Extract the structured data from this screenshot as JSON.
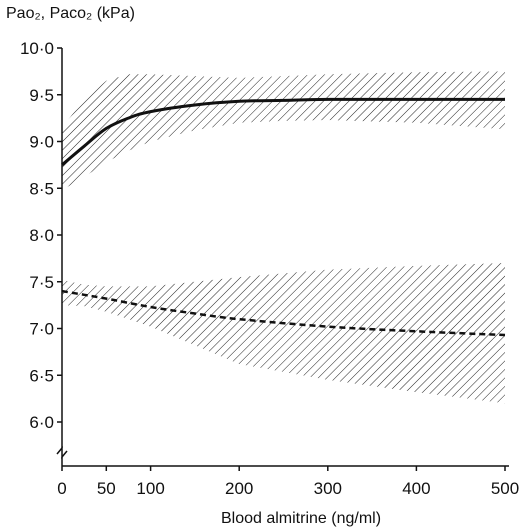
{
  "chart_data": {
    "type": "line",
    "title": "",
    "ylabel": "Pao₂, Paco₂ (kPa)",
    "xlabel": "Blood almitrine (ng/ml)",
    "xlim": [
      0,
      500
    ],
    "ylim": [
      5.6,
      10.0
    ],
    "y_axis_break": true,
    "grid": false,
    "x_ticks": [
      {
        "value": 0,
        "label": "0"
      },
      {
        "value": 50,
        "label": "50"
      },
      {
        "value": 100,
        "label": "100"
      },
      {
        "value": 200,
        "label": "200"
      },
      {
        "value": 300,
        "label": "300"
      },
      {
        "value": 400,
        "label": "400"
      },
      {
        "value": 500,
        "label": "500"
      }
    ],
    "y_ticks": [
      {
        "value": 6.0,
        "label": "6·0"
      },
      {
        "value": 6.5,
        "label": "6·5"
      },
      {
        "value": 7.0,
        "label": "7·0"
      },
      {
        "value": 7.5,
        "label": "7·5"
      },
      {
        "value": 8.0,
        "label": "8·0"
      },
      {
        "value": 8.5,
        "label": "8·5"
      },
      {
        "value": 9.0,
        "label": "9·0"
      },
      {
        "value": 9.5,
        "label": "9·5"
      },
      {
        "value": 10.0,
        "label": "10·0"
      }
    ],
    "series": [
      {
        "style": "solid",
        "color": "#111111",
        "x": [
          0,
          25,
          50,
          75,
          100,
          150,
          200,
          250,
          300,
          400,
          500
        ],
        "y": [
          8.75,
          8.95,
          9.14,
          9.25,
          9.32,
          9.39,
          9.43,
          9.44,
          9.45,
          9.45,
          9.45
        ],
        "band_upper": [
          9.15,
          9.45,
          9.65,
          9.72,
          9.72,
          9.7,
          9.68,
          9.7,
          9.72,
          9.74,
          9.75
        ],
        "band_lower": [
          8.48,
          8.62,
          8.78,
          8.9,
          9.0,
          9.12,
          9.2,
          9.22,
          9.23,
          9.2,
          9.13
        ]
      },
      {
        "style": "dashed",
        "color": "#111111",
        "x": [
          0,
          25,
          50,
          100,
          150,
          200,
          300,
          400,
          500
        ],
        "y": [
          7.4,
          7.36,
          7.32,
          7.23,
          7.16,
          7.1,
          7.02,
          6.97,
          6.93
        ],
        "band_upper": [
          7.52,
          7.47,
          7.45,
          7.45,
          7.5,
          7.55,
          7.63,
          7.67,
          7.7
        ],
        "band_lower": [
          7.25,
          7.24,
          7.18,
          7.02,
          6.82,
          6.62,
          6.45,
          6.32,
          6.2
        ]
      }
    ]
  }
}
